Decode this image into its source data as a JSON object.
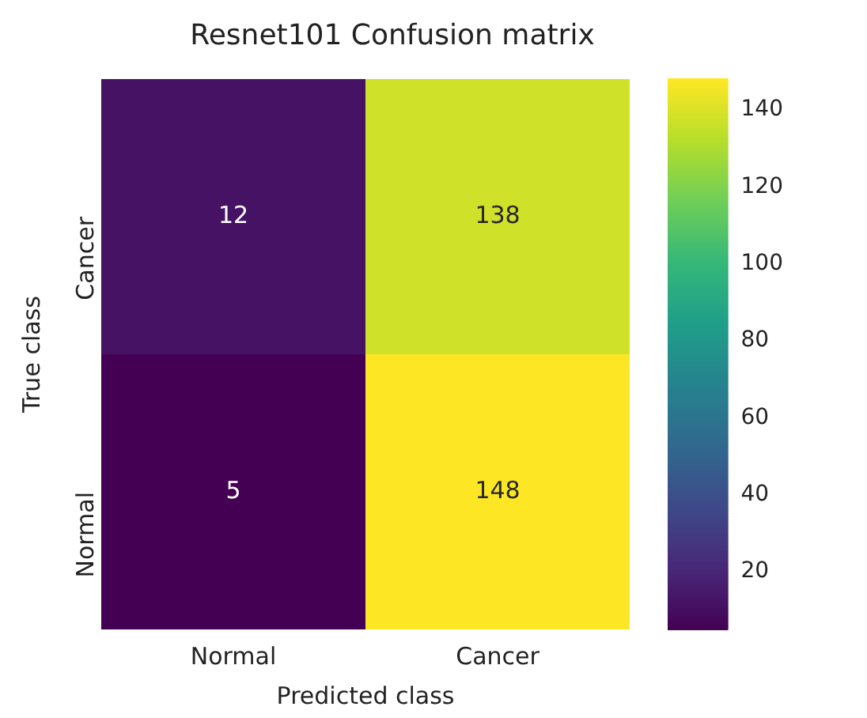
{
  "chart_data": {
    "type": "heatmap",
    "title": "Resnet101 Confusion matrix",
    "xlabel": "Predicted class",
    "ylabel": "True class",
    "categories": [
      "Normal",
      "Cancer"
    ],
    "y_categories": [
      "Cancer",
      "Normal"
    ],
    "cells": [
      [
        12,
        138
      ],
      [
        5,
        148
      ]
    ],
    "clim": [
      5,
      148
    ],
    "cticks": [
      20,
      40,
      60,
      80,
      100,
      120,
      140
    ],
    "data_labels": true
  }
}
